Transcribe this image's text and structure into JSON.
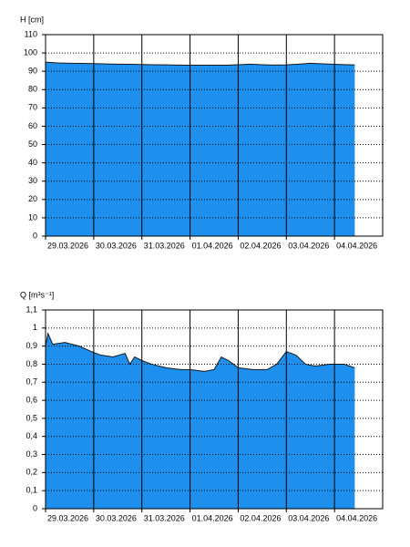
{
  "chart_data": [
    {
      "type": "area",
      "y_label": "H [cm]",
      "color": "#1e8fec",
      "line_color": "#1a1a1a",
      "grid": true,
      "x": [
        0,
        0.25,
        0.5,
        0.75,
        1,
        1.25,
        1.5,
        1.75,
        2,
        2.25,
        2.5,
        2.75,
        3,
        3.25,
        3.5,
        3.75,
        4,
        4.25,
        4.5,
        4.75,
        5,
        5.25,
        5.5,
        5.75,
        6,
        6.25,
        6.42
      ],
      "values": [
        95,
        94.6,
        94.4,
        94.3,
        94.2,
        94,
        93.9,
        93.8,
        93.7,
        93.6,
        93.5,
        93.4,
        93.3,
        93.3,
        93.3,
        93.3,
        93.6,
        93.9,
        93.6,
        93.4,
        93.5,
        93.9,
        94.4,
        94.1,
        93.8,
        93.6,
        93.5
      ],
      "xlim": [
        0,
        7
      ],
      "xticks": [
        {
          "value": 0,
          "label": "29.03.2026"
        },
        {
          "value": 1,
          "label": "30.03.2026"
        },
        {
          "value": 2,
          "label": "31.03.2026"
        },
        {
          "value": 3,
          "label": "01.04.2026"
        },
        {
          "value": 4,
          "label": "02.04.2026"
        },
        {
          "value": 5,
          "label": "03.04.2026"
        },
        {
          "value": 6,
          "label": "04.04.2026"
        }
      ],
      "ylim": [
        0,
        110
      ],
      "yticks": [
        0,
        10,
        20,
        30,
        40,
        50,
        60,
        70,
        80,
        90,
        100,
        110
      ]
    },
    {
      "type": "area",
      "y_label": "Q [m³s⁻¹]",
      "color": "#1e8fec",
      "line_color": "#1a1a1a",
      "grid": true,
      "x": [
        0,
        0.05,
        0.15,
        0.4,
        0.7,
        0.95,
        1.15,
        1.4,
        1.65,
        1.75,
        1.85,
        2.0,
        2.2,
        2.5,
        2.8,
        3.0,
        3.3,
        3.5,
        3.65,
        3.8,
        4.0,
        4.3,
        4.6,
        4.8,
        5.0,
        5.2,
        5.4,
        5.6,
        5.9,
        6.2,
        6.42
      ],
      "values": [
        0.9,
        0.97,
        0.91,
        0.92,
        0.9,
        0.87,
        0.85,
        0.84,
        0.86,
        0.8,
        0.84,
        0.82,
        0.8,
        0.78,
        0.77,
        0.77,
        0.76,
        0.77,
        0.84,
        0.82,
        0.78,
        0.77,
        0.77,
        0.8,
        0.87,
        0.85,
        0.8,
        0.79,
        0.8,
        0.8,
        0.78
      ],
      "xlim": [
        0,
        7
      ],
      "xticks": [
        {
          "value": 0,
          "label": "29.03.2026"
        },
        {
          "value": 1,
          "label": "30.03.2026"
        },
        {
          "value": 2,
          "label": "31.03.2026"
        },
        {
          "value": 3,
          "label": "01.04.2026"
        },
        {
          "value": 4,
          "label": "02.04.2026"
        },
        {
          "value": 5,
          "label": "03.04.2026"
        },
        {
          "value": 6,
          "label": "04.04.2026"
        }
      ],
      "ylim": [
        0,
        1.1
      ],
      "yticks": [
        0,
        {
          "value": 0.1,
          "label": "0,1"
        },
        {
          "value": 0.2,
          "label": "0,2"
        },
        {
          "value": 0.3,
          "label": "0,3"
        },
        {
          "value": 0.4,
          "label": "0,4"
        },
        {
          "value": 0.5,
          "label": "0,5"
        },
        {
          "value": 0.6,
          "label": "0,6"
        },
        {
          "value": 0.7,
          "label": "0,7"
        },
        {
          "value": 0.8,
          "label": "0,8"
        },
        {
          "value": 0.9,
          "label": "0,9"
        },
        1,
        {
          "value": 1.1,
          "label": "1,1"
        }
      ]
    }
  ]
}
